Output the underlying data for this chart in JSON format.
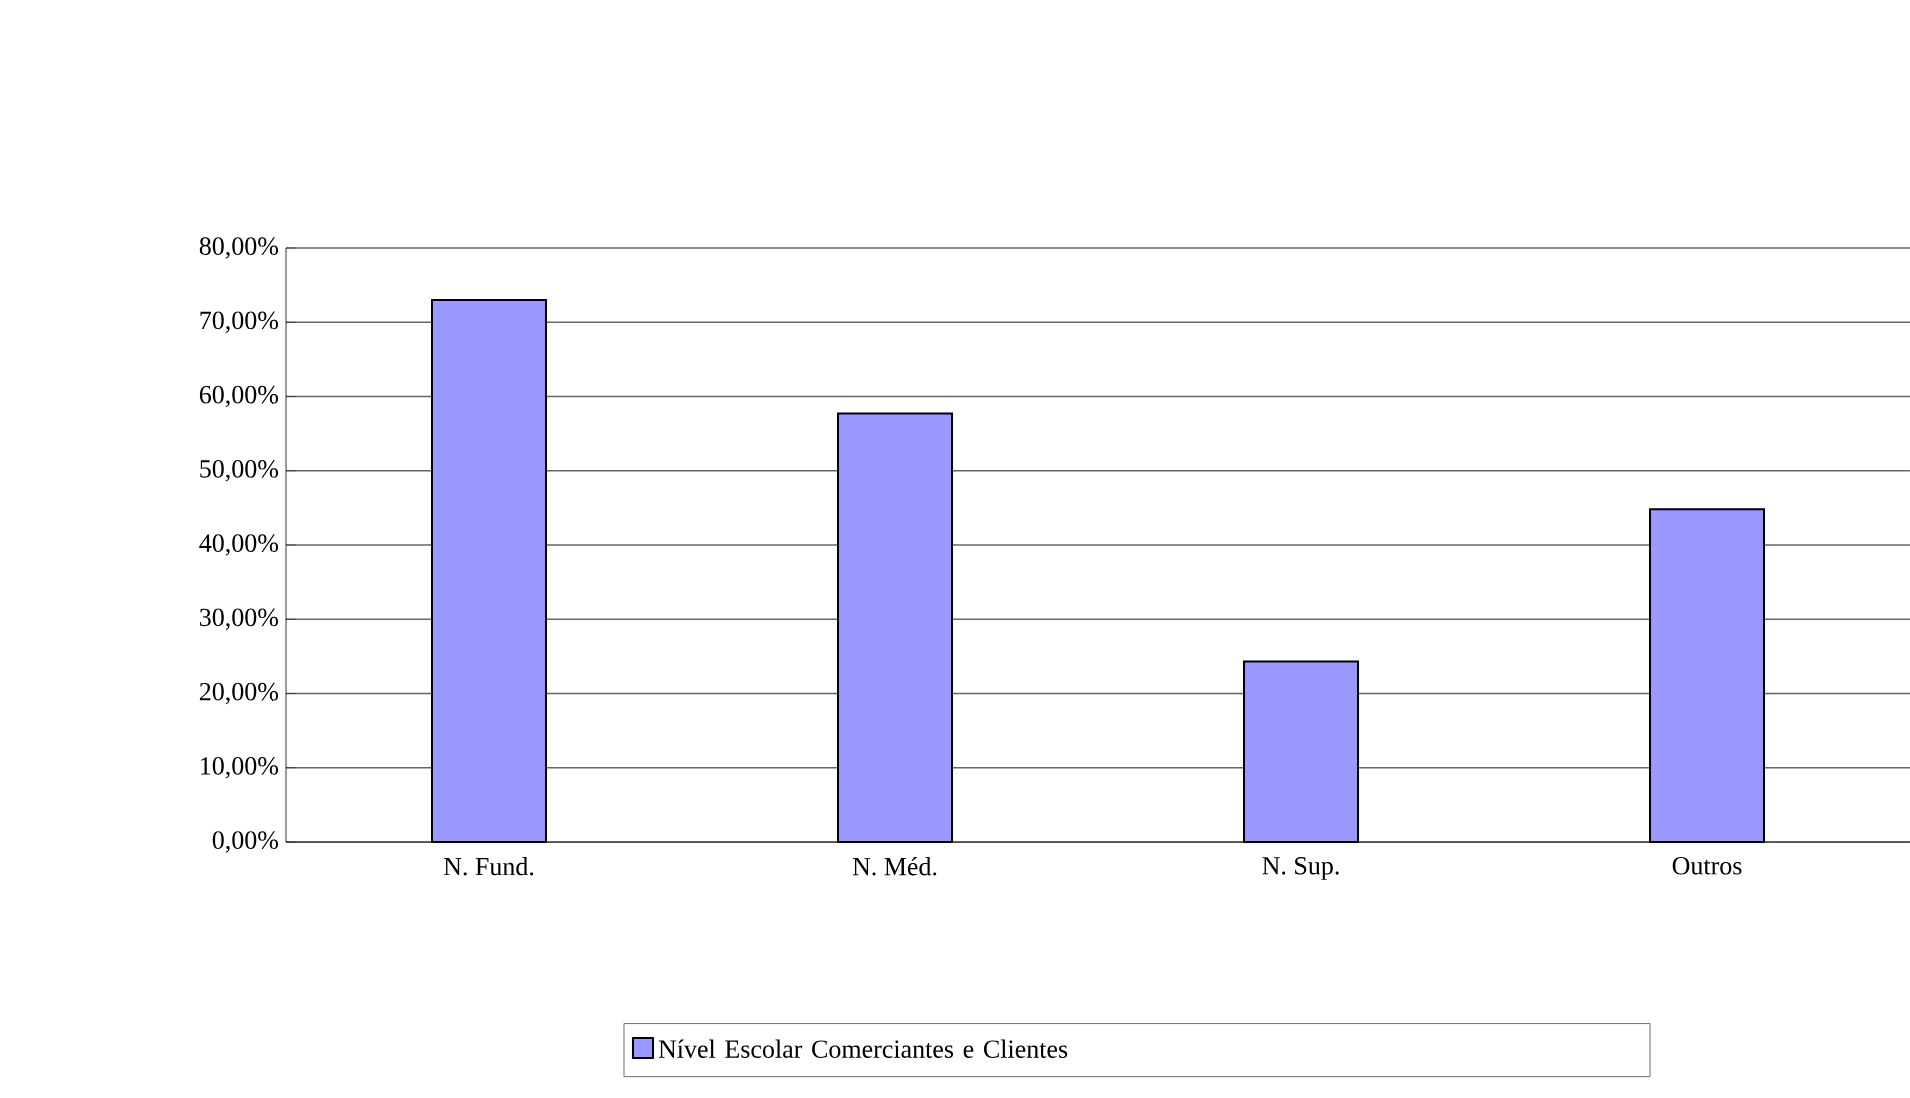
{
  "chart_data": {
    "type": "bar",
    "categories": [
      "N. Fund.",
      "N. Méd.",
      "N. Sup.",
      "Outros"
    ],
    "series": [
      {
        "name": "Nível Escolar Comerciantes e Clientes",
        "color": "#9999ff",
        "values": [
          73,
          57.7,
          24.3,
          44.8
        ]
      }
    ],
    "ylim": [
      0,
      80
    ],
    "yticks": [
      {
        "value": 0,
        "label": "0,00%"
      },
      {
        "value": 10,
        "label": "10,00%"
      },
      {
        "value": 20,
        "label": "20,00%"
      },
      {
        "value": 30,
        "label": "30,00%"
      },
      {
        "value": 40,
        "label": "40,00%"
      },
      {
        "value": 50,
        "label": "50,00%"
      },
      {
        "value": 60,
        "label": "60,00%"
      },
      {
        "value": 70,
        "label": "70,00%"
      },
      {
        "value": 80,
        "label": "80,00%"
      }
    ],
    "grid": "y",
    "legend": "bottom"
  }
}
